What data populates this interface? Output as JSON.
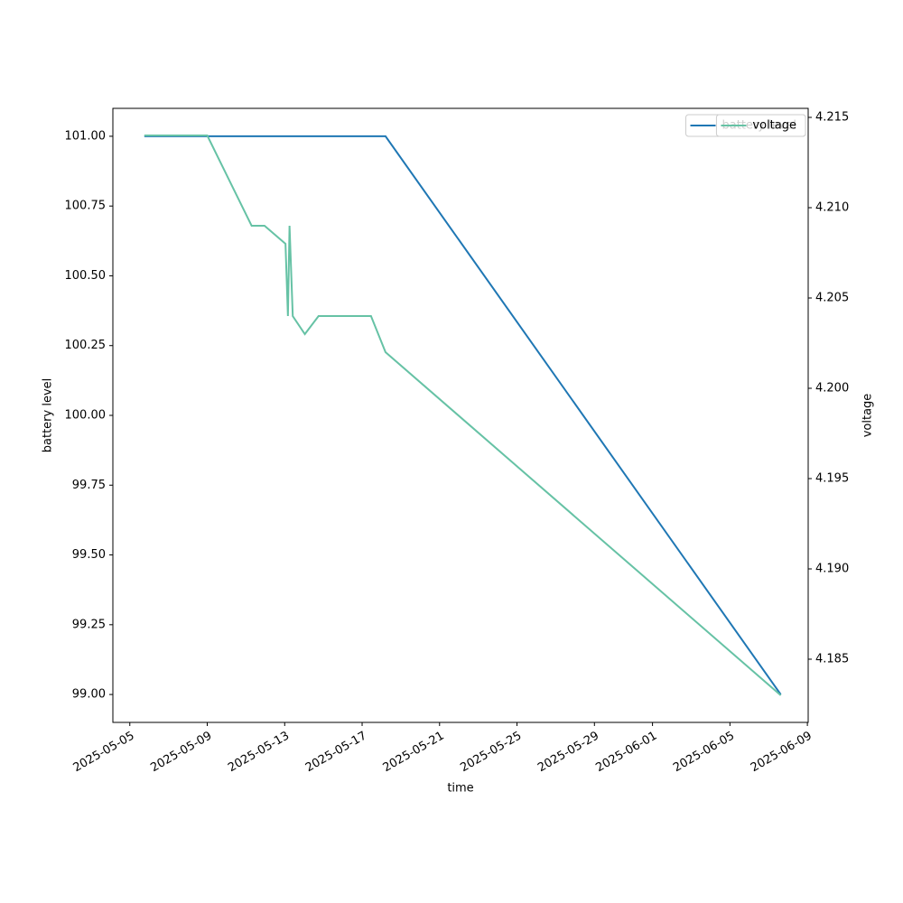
{
  "chart_data": {
    "type": "line",
    "x": [
      "2025-05-05T18:00",
      "2025-05-09T00:00",
      "2025-05-11T07:00",
      "2025-05-11T23:00",
      "2025-05-13T01:00",
      "2025-05-13T04:00",
      "2025-05-13T06:00",
      "2025-05-13T10:00",
      "2025-05-14T01:00",
      "2025-05-14T18:00",
      "2025-05-17T11:00",
      "2025-05-18T05:00",
      "2025-06-07T15:00"
    ],
    "series": [
      {
        "name": "battery level",
        "color": "#1f77b4",
        "values": [
          101,
          101,
          101,
          101,
          101,
          101,
          101,
          101,
          101,
          101,
          101,
          101,
          99
        ]
      },
      {
        "name": "voltage",
        "color": "#66c2a5",
        "axis": "y2",
        "values": [
          4.214,
          4.214,
          4.209,
          4.209,
          4.208,
          4.204,
          4.209,
          4.204,
          4.203,
          4.204,
          4.204,
          4.202,
          4.183
        ]
      }
    ],
    "xlabel": "time",
    "ylabel": "battery level",
    "y2label": "voltage",
    "xlim": [
      "2025-05-04T03:00",
      "2025-06-09T01:00"
    ],
    "xticks": [
      "2025-05-05",
      "2025-05-09",
      "2025-05-13",
      "2025-05-17",
      "2025-05-21",
      "2025-05-25",
      "2025-05-29",
      "2025-06-01",
      "2025-06-05",
      "2025-06-09"
    ],
    "ylim": [
      98.9,
      101.1
    ],
    "yticks": [
      {
        "value": 99,
        "label": "99.00"
      },
      {
        "value": 99.25,
        "label": "99.25"
      },
      {
        "value": 99.5,
        "label": "99.50"
      },
      {
        "value": 99.75,
        "label": "99.75"
      },
      {
        "value": 100,
        "label": "100.00"
      },
      {
        "value": 100.25,
        "label": "100.25"
      },
      {
        "value": 100.5,
        "label": "100.50"
      },
      {
        "value": 100.75,
        "label": "100.75"
      },
      {
        "value": 101,
        "label": "101.00"
      }
    ],
    "y2lim": [
      4.1815,
      4.2155
    ],
    "y2ticks": [
      4.185,
      {
        "value": 4.19,
        "label": "4.190"
      },
      4.195,
      {
        "value": 4.2,
        "label": "4.200"
      },
      4.205,
      {
        "value": 4.21,
        "label": "4.210"
      },
      4.215
    ],
    "legend": "upper right"
  }
}
